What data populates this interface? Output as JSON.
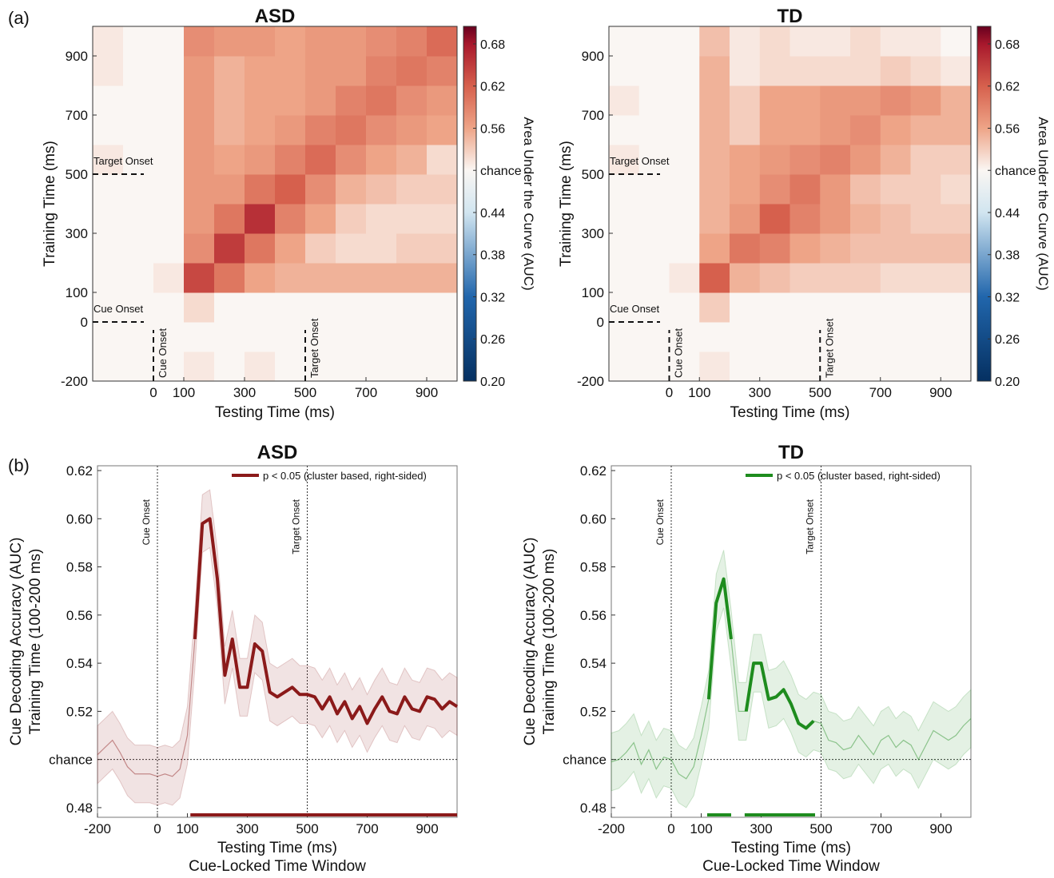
{
  "panel_labels": [
    "(a)",
    "(b)"
  ],
  "chart_data": [
    {
      "type": "heatmap",
      "title": "ASD",
      "title_color": "#e8191b",
      "xlabel": "Testing Time (ms)",
      "ylabel": "Training Time (ms)",
      "x": [
        -150,
        -50,
        50,
        150,
        250,
        350,
        450,
        550,
        650,
        750,
        850,
        950
      ],
      "y": [
        -150,
        -50,
        50,
        150,
        250,
        350,
        450,
        550,
        650,
        750,
        850,
        950
      ],
      "z": [
        [
          0.5,
          0.5,
          0.5,
          0.51,
          0.5,
          0.51,
          0.5,
          0.5,
          0.5,
          0.5,
          0.5,
          0.5
        ],
        [
          0.5,
          0.5,
          0.5,
          0.5,
          0.5,
          0.5,
          0.5,
          0.5,
          0.5,
          0.5,
          0.5,
          0.5
        ],
        [
          0.5,
          0.5,
          0.5,
          0.52,
          0.5,
          0.5,
          0.5,
          0.5,
          0.5,
          0.5,
          0.5,
          0.5
        ],
        [
          0.5,
          0.5,
          0.51,
          0.64,
          0.6,
          0.56,
          0.55,
          0.55,
          0.55,
          0.55,
          0.55,
          0.55
        ],
        [
          0.5,
          0.5,
          0.5,
          0.58,
          0.65,
          0.6,
          0.56,
          0.53,
          0.52,
          0.52,
          0.53,
          0.53
        ],
        [
          0.5,
          0.5,
          0.5,
          0.57,
          0.6,
          0.66,
          0.59,
          0.56,
          0.53,
          0.52,
          0.52,
          0.52
        ],
        [
          0.5,
          0.5,
          0.5,
          0.57,
          0.57,
          0.6,
          0.62,
          0.58,
          0.55,
          0.54,
          0.53,
          0.53
        ],
        [
          0.51,
          0.5,
          0.5,
          0.57,
          0.56,
          0.57,
          0.59,
          0.61,
          0.58,
          0.56,
          0.55,
          0.52
        ],
        [
          0.5,
          0.5,
          0.5,
          0.57,
          0.55,
          0.56,
          0.57,
          0.59,
          0.6,
          0.58,
          0.57,
          0.56
        ],
        [
          0.5,
          0.5,
          0.5,
          0.57,
          0.55,
          0.56,
          0.56,
          0.57,
          0.59,
          0.6,
          0.58,
          0.57
        ],
        [
          0.51,
          0.5,
          0.5,
          0.57,
          0.55,
          0.56,
          0.56,
          0.57,
          0.57,
          0.59,
          0.6,
          0.59
        ],
        [
          0.51,
          0.5,
          0.5,
          0.58,
          0.57,
          0.57,
          0.56,
          0.57,
          0.57,
          0.58,
          0.59,
          0.61
        ]
      ],
      "xlim": [
        -200,
        1000
      ],
      "ylim": [
        -200,
        1000
      ],
      "xticks": [
        0,
        100,
        300,
        500,
        700,
        900
      ],
      "yticks": [
        -200,
        0,
        100,
        300,
        500,
        700,
        900
      ],
      "hlines": [
        {
          "y": 0,
          "label": "Cue Onset"
        },
        {
          "y": 500,
          "label": "Target Onset"
        }
      ],
      "vlines": [
        {
          "x": 0,
          "label": "Cue Onset"
        },
        {
          "x": 500,
          "label": "Target Onset"
        }
      ],
      "colorbar": {
        "label": "Area Under the Curve (AUC)",
        "lim": [
          0.2,
          0.705
        ],
        "ticks": [
          {
            "value": 0.2,
            "label": "0.20"
          },
          0.26,
          0.32,
          0.38,
          0.44,
          {
            "value": 0.5,
            "label": "chance"
          },
          0.56,
          0.62,
          0.68
        ]
      }
    },
    {
      "type": "heatmap",
      "title": "TD",
      "title_color": "#22b422",
      "xlabel": "Testing Time (ms)",
      "ylabel": "Training Time (ms)",
      "x": [
        -150,
        -50,
        50,
        150,
        250,
        350,
        450,
        550,
        650,
        750,
        850,
        950
      ],
      "y": [
        -150,
        -50,
        50,
        150,
        250,
        350,
        450,
        550,
        650,
        750,
        850,
        950
      ],
      "z": [
        [
          0.5,
          0.5,
          0.5,
          0.51,
          0.5,
          0.5,
          0.5,
          0.5,
          0.5,
          0.5,
          0.5,
          0.5
        ],
        [
          0.5,
          0.5,
          0.5,
          0.5,
          0.5,
          0.5,
          0.5,
          0.5,
          0.5,
          0.5,
          0.5,
          0.5
        ],
        [
          0.5,
          0.5,
          0.5,
          0.53,
          0.5,
          0.5,
          0.5,
          0.5,
          0.5,
          0.5,
          0.5,
          0.5
        ],
        [
          0.5,
          0.5,
          0.51,
          0.62,
          0.55,
          0.54,
          0.53,
          0.53,
          0.53,
          0.52,
          0.52,
          0.52
        ],
        [
          0.5,
          0.5,
          0.5,
          0.56,
          0.6,
          0.59,
          0.56,
          0.55,
          0.54,
          0.54,
          0.54,
          0.54
        ],
        [
          0.5,
          0.5,
          0.5,
          0.55,
          0.57,
          0.62,
          0.59,
          0.57,
          0.55,
          0.54,
          0.53,
          0.53
        ],
        [
          0.5,
          0.5,
          0.5,
          0.55,
          0.56,
          0.58,
          0.6,
          0.57,
          0.54,
          0.53,
          0.53,
          0.52
        ],
        [
          0.51,
          0.5,
          0.5,
          0.55,
          0.56,
          0.57,
          0.58,
          0.59,
          0.57,
          0.55,
          0.53,
          0.53
        ],
        [
          0.5,
          0.5,
          0.5,
          0.55,
          0.53,
          0.56,
          0.56,
          0.57,
          0.58,
          0.56,
          0.55,
          0.55
        ],
        [
          0.51,
          0.5,
          0.5,
          0.55,
          0.53,
          0.56,
          0.56,
          0.57,
          0.57,
          0.58,
          0.57,
          0.55
        ],
        [
          0.5,
          0.5,
          0.5,
          0.55,
          0.51,
          0.52,
          0.52,
          0.52,
          0.52,
          0.53,
          0.52,
          0.51
        ],
        [
          0.5,
          0.5,
          0.5,
          0.54,
          0.51,
          0.52,
          0.51,
          0.51,
          0.52,
          0.51,
          0.51,
          0.5
        ]
      ],
      "xlim": [
        -200,
        1000
      ],
      "ylim": [
        -200,
        1000
      ],
      "xticks": [
        0,
        100,
        300,
        500,
        700,
        900
      ],
      "yticks": [
        -200,
        0,
        100,
        300,
        500,
        700,
        900
      ],
      "hlines": [
        {
          "y": 0,
          "label": "Cue Onset"
        },
        {
          "y": 500,
          "label": "Target Onset"
        }
      ],
      "vlines": [
        {
          "x": 0,
          "label": "Cue Onset"
        },
        {
          "x": 500,
          "label": "Target Onset"
        }
      ],
      "colorbar": {
        "label": "Area Under the Curve (AUC)",
        "lim": [
          0.2,
          0.705
        ],
        "ticks": [
          {
            "value": 0.2,
            "label": "0.20"
          },
          0.26,
          0.32,
          0.38,
          0.44,
          {
            "value": 0.5,
            "label": "chance"
          },
          0.56,
          0.62,
          0.68
        ]
      }
    },
    {
      "type": "line",
      "title": "ASD",
      "title_color": "#e8191b",
      "xlabel": "Testing Time (ms)",
      "xsublabel": "Cue-Locked Time Window",
      "ylabel": [
        "Cue Decoding Accuracy (AUC)",
        "Training Time (100-200 ms)"
      ],
      "x": [
        -200,
        -175,
        -150,
        -125,
        -100,
        -75,
        -50,
        -25,
        0,
        25,
        50,
        75,
        100,
        125,
        150,
        175,
        200,
        225,
        250,
        275,
        300,
        325,
        350,
        375,
        400,
        425,
        450,
        475,
        500,
        525,
        550,
        575,
        600,
        625,
        650,
        675,
        700,
        725,
        750,
        775,
        800,
        825,
        850,
        875,
        900,
        925,
        950,
        975,
        1000
      ],
      "series": [
        {
          "name": "p < 0.05 (cluster based, right-sided)",
          "color": "#8b1a1a",
          "band": 0.012,
          "significant": [
            [
              110,
              1000
            ]
          ],
          "values": [
            0.502,
            0.505,
            0.508,
            0.503,
            0.497,
            0.494,
            0.494,
            0.494,
            0.493,
            0.494,
            0.493,
            0.496,
            0.51,
            0.55,
            0.598,
            0.6,
            0.575,
            0.535,
            0.55,
            0.53,
            0.53,
            0.548,
            0.545,
            0.528,
            0.526,
            0.528,
            0.53,
            0.527,
            0.527,
            0.526,
            0.521,
            0.526,
            0.519,
            0.524,
            0.517,
            0.522,
            0.515,
            0.521,
            0.526,
            0.52,
            0.519,
            0.526,
            0.521,
            0.52,
            0.526,
            0.525,
            0.521,
            0.524,
            0.522
          ]
        }
      ],
      "xlim": [
        -200,
        1000
      ],
      "ylim": [
        0.476,
        0.622
      ],
      "xticks": [
        -200,
        0,
        100,
        300,
        500,
        700,
        900
      ],
      "yticks": [
        0.48,
        {
          "value": 0.5,
          "label": "chance"
        },
        0.52,
        0.54,
        0.56,
        0.58,
        {
          "value": 0.6,
          "label": "0.60"
        },
        0.62
      ],
      "hline": 0.5,
      "vlines": [
        {
          "x": 0,
          "label": "Cue Onset"
        },
        {
          "x": 500,
          "label": "Target Onset"
        }
      ],
      "legend": "upper right"
    },
    {
      "type": "line",
      "title": "TD",
      "title_color": "#22b422",
      "xlabel": "Testing Time (ms)",
      "xsublabel": "Cue-Locked Time Window",
      "ylabel": [
        "Cue Decoding Accuracy (AUC)",
        "Training Time (100-200 ms)"
      ],
      "x": [
        -200,
        -175,
        -150,
        -125,
        -100,
        -75,
        -50,
        -25,
        0,
        25,
        50,
        75,
        100,
        125,
        150,
        175,
        200,
        225,
        250,
        275,
        300,
        325,
        350,
        375,
        400,
        425,
        450,
        475,
        500,
        525,
        550,
        575,
        600,
        625,
        650,
        675,
        700,
        725,
        750,
        775,
        800,
        825,
        850,
        875,
        900,
        925,
        950,
        975,
        1000
      ],
      "series": [
        {
          "name": "p < 0.05 (cluster based, right-sided)",
          "color": "#1e8c1e",
          "band": 0.012,
          "significant": [
            [
              120,
              200
            ],
            [
              245,
              480
            ]
          ],
          "values": [
            0.499,
            0.5,
            0.503,
            0.507,
            0.498,
            0.504,
            0.496,
            0.501,
            0.5,
            0.494,
            0.492,
            0.497,
            0.51,
            0.525,
            0.565,
            0.575,
            0.55,
            0.52,
            0.52,
            0.54,
            0.54,
            0.525,
            0.526,
            0.529,
            0.523,
            0.515,
            0.513,
            0.516,
            0.515,
            0.508,
            0.507,
            0.504,
            0.505,
            0.51,
            0.506,
            0.502,
            0.508,
            0.51,
            0.505,
            0.508,
            0.506,
            0.5,
            0.506,
            0.512,
            0.51,
            0.508,
            0.51,
            0.514,
            0.517
          ]
        }
      ],
      "xlim": [
        -200,
        1000
      ],
      "ylim": [
        0.476,
        0.622
      ],
      "xticks": [
        -200,
        0,
        100,
        300,
        500,
        700,
        900
      ],
      "yticks": [
        0.48,
        {
          "value": 0.5,
          "label": "chance"
        },
        0.52,
        0.54,
        0.56,
        0.58,
        {
          "value": 0.6,
          "label": "0.60"
        },
        0.62
      ],
      "hline": 0.5,
      "vlines": [
        {
          "x": 0,
          "label": "Cue Onset"
        },
        {
          "x": 500,
          "label": "Target Onset"
        }
      ],
      "legend": "upper right"
    }
  ]
}
